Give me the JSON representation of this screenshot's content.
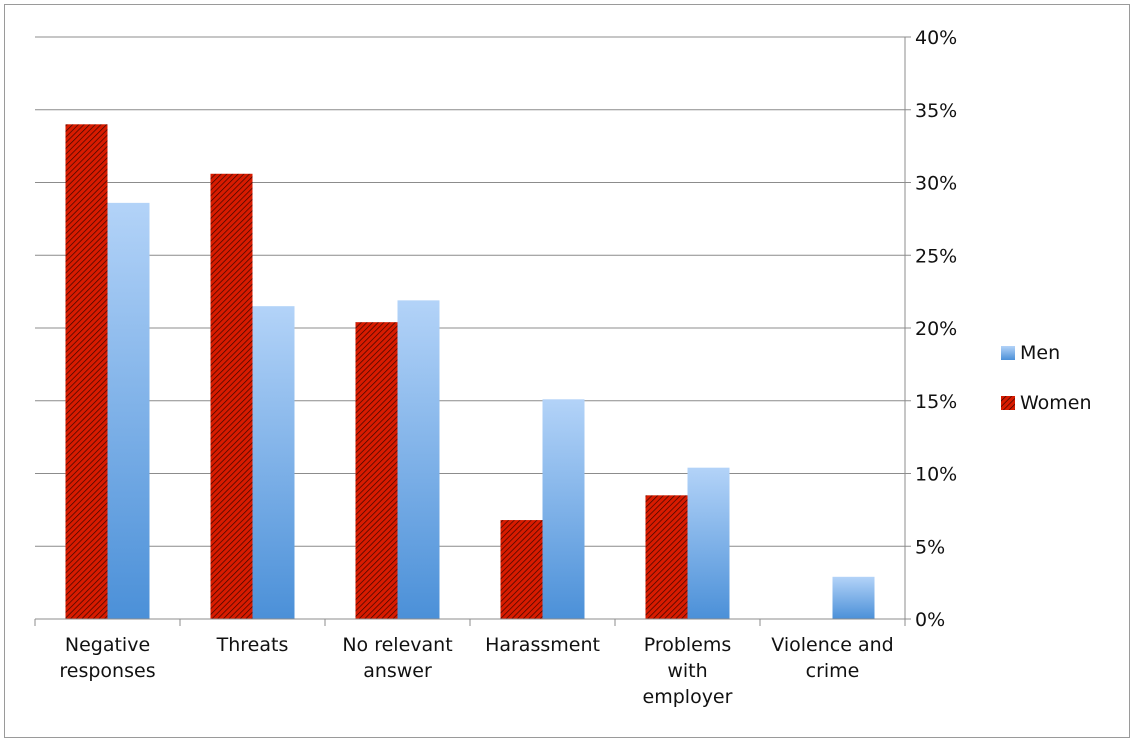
{
  "chart_data": {
    "type": "bar",
    "title": "",
    "xlabel": "",
    "ylabel": "",
    "categories": [
      [
        "Negative",
        "responses"
      ],
      [
        "Threats"
      ],
      [
        "No relevant",
        "answer"
      ],
      [
        "Harassment"
      ],
      [
        "Problems",
        "with",
        "employer"
      ],
      [
        "Violence and",
        "crime"
      ]
    ],
    "series": [
      {
        "name": "Women",
        "color": "#cc1100",
        "pattern": "diagonal-hatch",
        "values": [
          34.0,
          30.6,
          20.4,
          6.8,
          8.5,
          0.0
        ]
      },
      {
        "name": "Men",
        "color": "#5b9bd5",
        "gradient_top": "#aecdf5",
        "gradient_bottom": "#4a8fd6",
        "values": [
          28.6,
          21.5,
          21.9,
          15.1,
          10.4,
          2.9
        ]
      }
    ],
    "ylim": [
      0,
      40
    ],
    "yticks": [
      "0%",
      "5%",
      "10%",
      "15%",
      "20%",
      "25%",
      "30%",
      "35%",
      "40%"
    ],
    "ytick_values": [
      0,
      5,
      10,
      15,
      20,
      25,
      30,
      35,
      40
    ],
    "y_axis_side": "right",
    "grid": true,
    "legend": {
      "placement": "right",
      "entries": [
        "Men",
        "Women"
      ]
    }
  }
}
